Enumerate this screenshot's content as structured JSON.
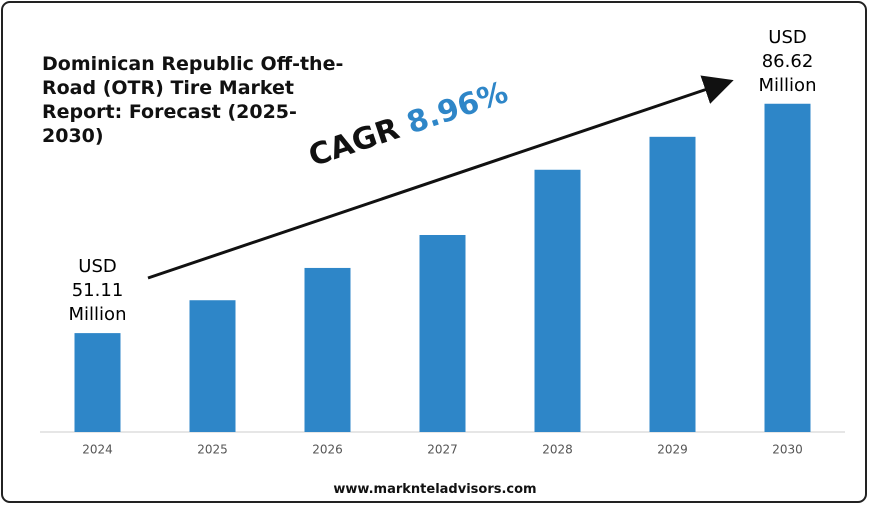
{
  "title": "Dominican Republic Off-the-Road (OTR) Tire Market Report: Forecast (2025-2030)",
  "chart_data": {
    "type": "bar",
    "categories": [
      "2024",
      "2025",
      "2026",
      "2027",
      "2028",
      "2029",
      "2030"
    ],
    "values": [
      51.11,
      56.2,
      61.2,
      66.3,
      76.4,
      81.5,
      86.62
    ],
    "value_labels": [
      "USD 51.11 Million",
      null,
      null,
      null,
      null,
      null,
      "USD 86.62 Million"
    ],
    "color": "#2e86c8",
    "ylim": [
      35.8,
      87.2
    ],
    "annotation": {
      "label": "CAGR",
      "value": "8.96%"
    }
  },
  "footer": "www.marknteladvisors.com"
}
